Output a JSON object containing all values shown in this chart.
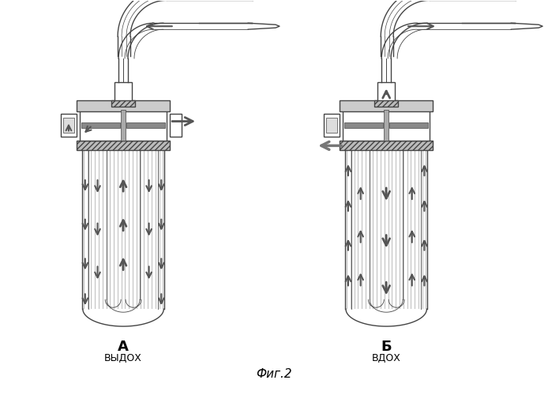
{
  "fig_label": "Фиг.2",
  "label_A": "А",
  "label_B": "Б",
  "caption_A": "ВЫДОХ",
  "caption_B": "ВДОХ",
  "bg_color": "#ffffff",
  "lc": "#444444",
  "lc2": "#666666",
  "ac": "#555555",
  "gc": "#aaaaaa",
  "hc": "#cccccc",
  "fig_width": 6.94,
  "fig_height": 5.0,
  "dpi": 100
}
